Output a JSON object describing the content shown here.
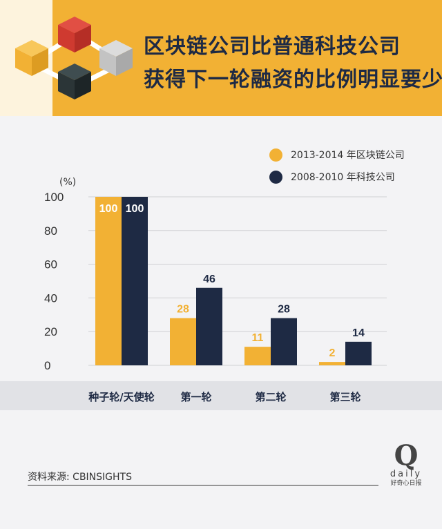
{
  "header": {
    "title_line1": "区块链公司比普通科技公司",
    "title_line2": "获得下一轮融资的比例明显要少"
  },
  "colors": {
    "header_bg": "#f2b134",
    "series_blockchain": "#f2b134",
    "series_tech": "#1e2a44",
    "background": "#f3f3f5",
    "axis_band": "#e1e2e6"
  },
  "chart_data": {
    "type": "bar",
    "title": "",
    "unit_label": "(%)",
    "categories": [
      "种子轮/天使轮",
      "第一轮",
      "第二轮",
      "第三轮"
    ],
    "series": [
      {
        "name": "2013-2014 年区块链公司",
        "values": [
          100,
          28,
          11,
          2
        ]
      },
      {
        "name": "2008-2010 年科技公司",
        "values": [
          100,
          46,
          28,
          14
        ]
      }
    ],
    "ylim": [
      0,
      100
    ],
    "yticks": [
      0,
      20,
      40,
      60,
      80,
      100
    ],
    "grid": true,
    "legend_position": "top-right"
  },
  "footer": {
    "source": "资料来源: CBINSIGHTS",
    "brand_q": "Q",
    "brand_daily": "daily",
    "brand_cn": "好奇心日报"
  }
}
